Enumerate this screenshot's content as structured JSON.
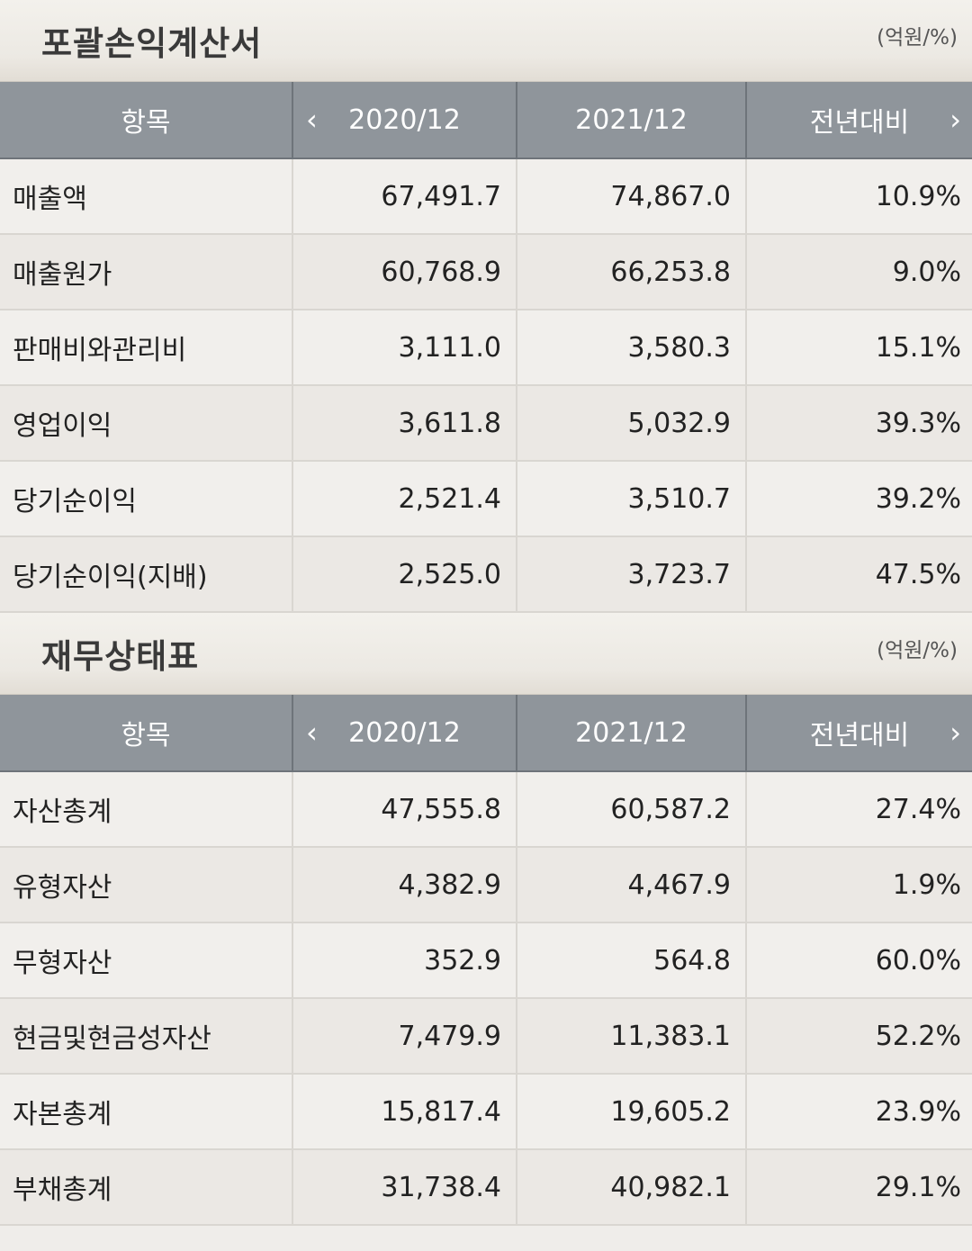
{
  "income": {
    "title": "포괄손익계산서",
    "unit": "(억원/%)",
    "headers": {
      "item": "항목",
      "prev": "2020/12",
      "curr": "2021/12",
      "yoy": "전년대비"
    },
    "rows": [
      {
        "label": "매출액",
        "prev": "67,491.7",
        "curr": "74,867.0",
        "yoy": "10.9%"
      },
      {
        "label": "매출원가",
        "prev": "60,768.9",
        "curr": "66,253.8",
        "yoy": "9.0%"
      },
      {
        "label": "판매비와관리비",
        "prev": "3,111.0",
        "curr": "3,580.3",
        "yoy": "15.1%"
      },
      {
        "label": "영업이익",
        "prev": "3,611.8",
        "curr": "5,032.9",
        "yoy": "39.3%"
      },
      {
        "label": "당기순이익",
        "prev": "2,521.4",
        "curr": "3,510.7",
        "yoy": "39.2%"
      },
      {
        "label": "당기순이익(지배)",
        "prev": "2,525.0",
        "curr": "3,723.7",
        "yoy": "47.5%"
      }
    ]
  },
  "balance": {
    "title": "재무상태표",
    "unit": "(억원/%)",
    "headers": {
      "item": "항목",
      "prev": "2020/12",
      "curr": "2021/12",
      "yoy": "전년대비"
    },
    "rows": [
      {
        "label": "자산총계",
        "prev": "47,555.8",
        "curr": "60,587.2",
        "yoy": "27.4%"
      },
      {
        "label": "유형자산",
        "prev": "4,382.9",
        "curr": "4,467.9",
        "yoy": "1.9%"
      },
      {
        "label": "무형자산",
        "prev": "352.9",
        "curr": "564.8",
        "yoy": "60.0%"
      },
      {
        "label": "현금및현금성자산",
        "prev": "7,479.9",
        "curr": "11,383.1",
        "yoy": "52.2%"
      },
      {
        "label": "자본총계",
        "prev": "15,817.4",
        "curr": "19,605.2",
        "yoy": "23.9%"
      },
      {
        "label": "부채총계",
        "prev": "31,738.4",
        "curr": "40,982.1",
        "yoy": "29.1%"
      }
    ]
  },
  "icons": {
    "prev": "chevron-left-icon",
    "next": "chevron-right-icon"
  }
}
